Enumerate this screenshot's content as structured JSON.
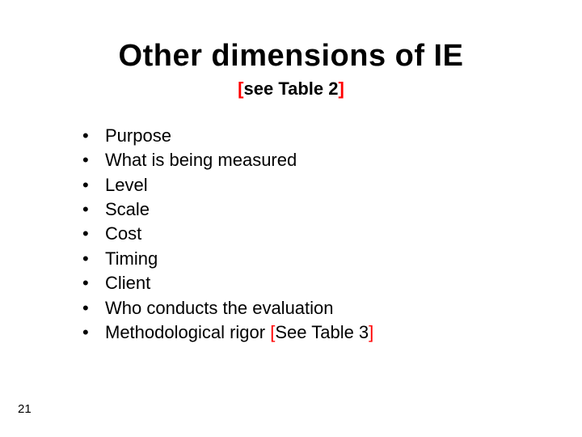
{
  "slide": {
    "title": "Other dimensions of IE",
    "subtitle_open": "[",
    "subtitle_text": "see Table 2",
    "subtitle_close": "]",
    "page_number": "21",
    "colors": {
      "title": "#000000",
      "body": "#000000",
      "accent_red": "#ff0000",
      "background": "#ffffff"
    },
    "typography": {
      "title_fontsize": 38,
      "subtitle_fontsize": 22,
      "body_fontsize": 22,
      "page_number_fontsize": 15,
      "font_family": "Arial"
    },
    "bullet_char": "•",
    "items": [
      {
        "text": "Purpose"
      },
      {
        "text": "What is being measured"
      },
      {
        "text": "Level"
      },
      {
        "text": "Scale"
      },
      {
        "text": "Cost"
      },
      {
        "text": "Timing"
      },
      {
        "text": "Client"
      },
      {
        "text": "Who conducts the evaluation"
      },
      {
        "text": "Methodological rigor ",
        "suffix_open": "[",
        "suffix_text": "See Table 3",
        "suffix_close": "]"
      }
    ]
  }
}
